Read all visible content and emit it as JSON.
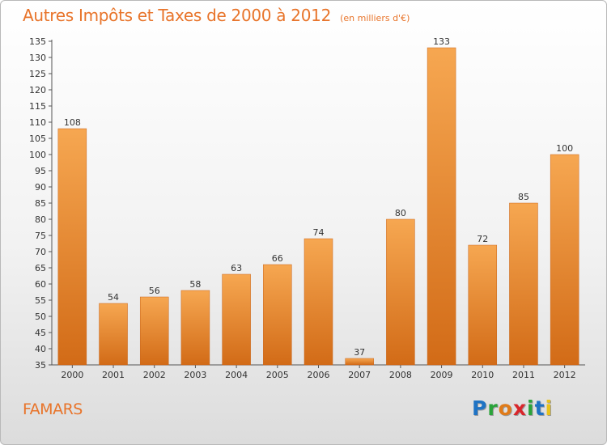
{
  "header": {
    "title": "Autres Impôts et Taxes de 2000 à 2012",
    "subtitle": "(en milliers d'€)"
  },
  "footer": {
    "commune": "FAMARS"
  },
  "logo": {
    "letters": [
      {
        "char": "P",
        "color": "#1f73c4"
      },
      {
        "char": "r",
        "color": "#2aa33a"
      },
      {
        "char": "o",
        "color": "#e07b19"
      },
      {
        "char": "x",
        "color": "#d8262b"
      },
      {
        "char": "i",
        "color": "#2aa33a"
      },
      {
        "char": "t",
        "color": "#1f73c4"
      },
      {
        "char": "i",
        "color": "#e8c21a"
      }
    ]
  },
  "colors": {
    "bar_top": "#f6a751",
    "bar_bottom": "#d26b17",
    "text": "#333333",
    "accent": "#e8742a"
  },
  "chart_data": {
    "type": "bar",
    "categories": [
      "2000",
      "2001",
      "2002",
      "2003",
      "2004",
      "2005",
      "2006",
      "2007",
      "2008",
      "2009",
      "2010",
      "2011",
      "2012"
    ],
    "values": [
      108,
      54,
      56,
      58,
      63,
      66,
      74,
      37,
      80,
      133,
      72,
      85,
      100
    ],
    "ylim": [
      35,
      135
    ],
    "yticks": [
      35,
      40,
      45,
      50,
      55,
      60,
      65,
      70,
      75,
      80,
      85,
      90,
      95,
      100,
      105,
      110,
      115,
      120,
      125,
      130,
      135
    ],
    "grid": false
  }
}
